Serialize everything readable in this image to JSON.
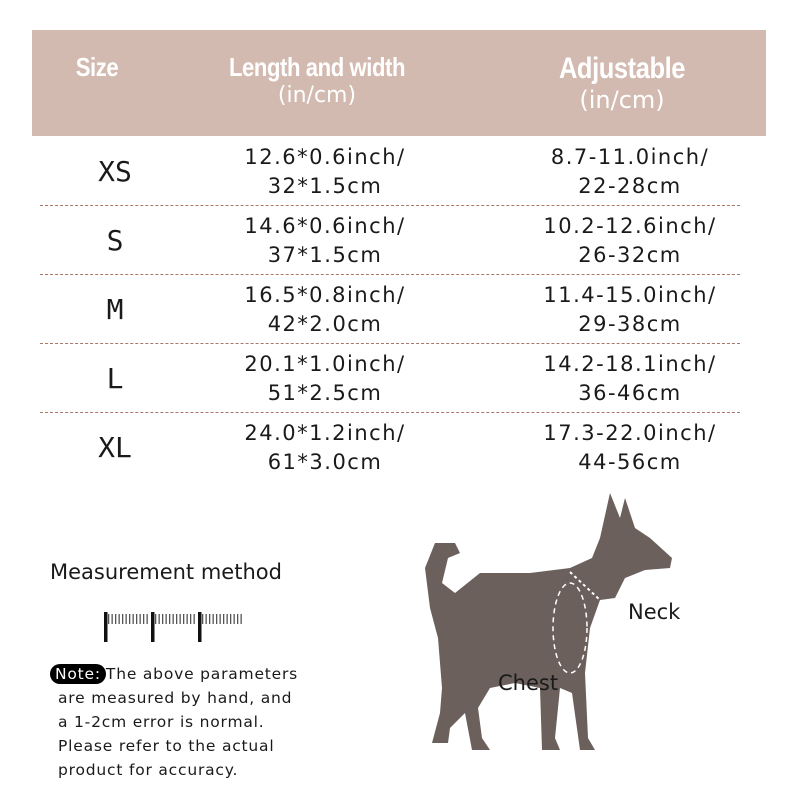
{
  "header": {
    "size": "Size",
    "length_width": "Length and width",
    "length_width_unit": "(in/cm)",
    "adjustable": "Adjustable",
    "adjustable_unit": "(in/cm)"
  },
  "rows": [
    {
      "size": "XS",
      "lw1": "12.6*0.6inch/",
      "lw2": "32*1.5cm",
      "adj1": "8.7-11.0inch/",
      "adj2": "22-28cm"
    },
    {
      "size": "S",
      "lw1": "14.6*0.6inch/",
      "lw2": "37*1.5cm",
      "adj1": "10.2-12.6inch/",
      "adj2": "26-32cm"
    },
    {
      "size": "M",
      "lw1": "16.5*0.8inch/",
      "lw2": "42*2.0cm",
      "adj1": "11.4-15.0inch/",
      "adj2": "29-38cm"
    },
    {
      "size": "L",
      "lw1": "20.1*1.0inch/",
      "lw2": "51*2.5cm",
      "adj1": "14.2-18.1inch/",
      "adj2": "36-46cm"
    },
    {
      "size": "XL",
      "lw1": "24.0*1.2inch/",
      "lw2": "61*3.0cm",
      "adj1": "17.3-22.0inch/",
      "adj2": "44-56cm"
    }
  ],
  "measurement": {
    "title": "Measurement method",
    "note_label": "Note:",
    "note_lines": [
      "The above parameters",
      "are measured by hand, and",
      "a 1-2cm error is normal.",
      "Please refer to the actual",
      "product for accuracy."
    ]
  },
  "diagram": {
    "neck_label": "Neck",
    "chest_label": "Chest"
  },
  "colors": {
    "header_bg": "#d3bab0",
    "divider": "#a9786a",
    "dog": "#6b605c"
  }
}
